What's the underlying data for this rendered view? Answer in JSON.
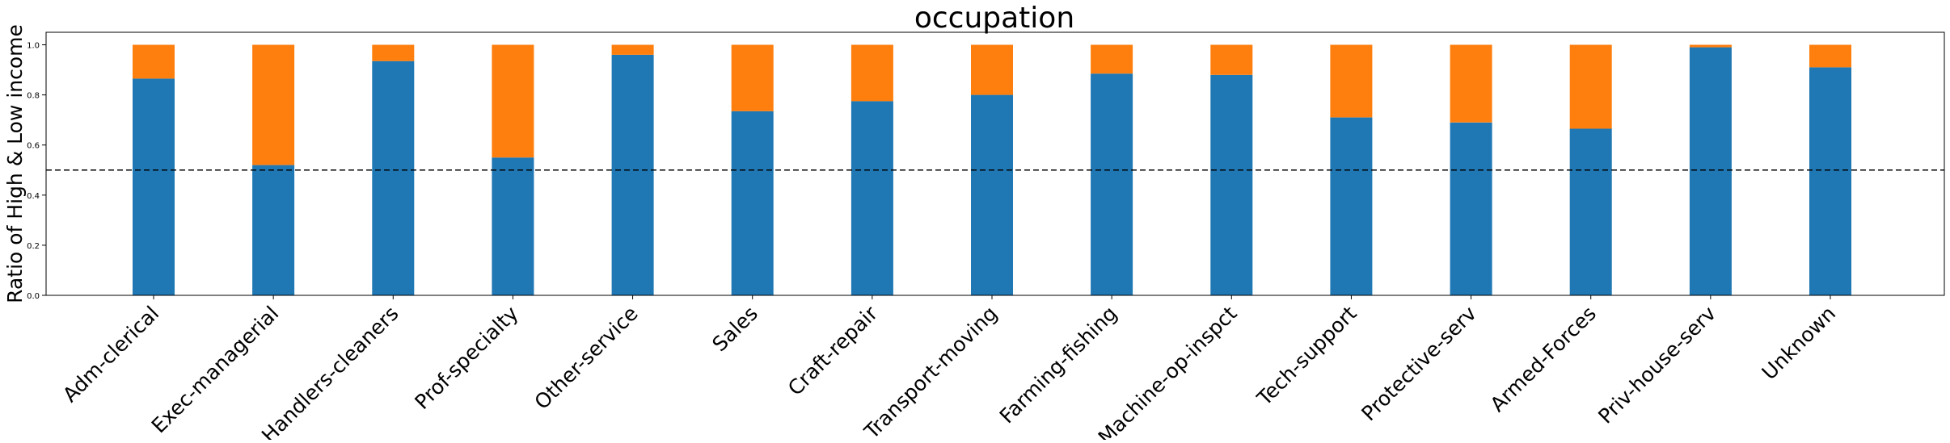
{
  "chart_data": {
    "type": "bar",
    "stacked": true,
    "title": "occupation",
    "xlabel": "",
    "ylabel": "Ratio of High & Low income",
    "ylim": [
      0,
      1.05
    ],
    "yticks": [
      "0.0",
      "0.2",
      "0.4",
      "0.6",
      "0.8",
      "1.0"
    ],
    "grid": false,
    "reference_line": {
      "y": 0.5,
      "style": "dashed",
      "color": "#000000"
    },
    "categories": [
      "Adm-clerical",
      "Exec-managerial",
      "Handlers-cleaners",
      "Prof-specialty",
      "Other-service",
      "Sales",
      "Craft-repair",
      "Transport-moving",
      "Farming-fishing",
      "Machine-op-inspct",
      "Tech-support",
      "Protective-serv",
      "Armed-Forces",
      "Priv-house-serv",
      "Unknown"
    ],
    "series": [
      {
        "color": "#1f77b4",
        "values": [
          0.865,
          0.52,
          0.935,
          0.55,
          0.96,
          0.735,
          0.775,
          0.8,
          0.885,
          0.88,
          0.71,
          0.69,
          0.665,
          0.99,
          0.91
        ]
      },
      {
        "color": "#ff7f0e",
        "values": [
          0.135,
          0.48,
          0.065,
          0.45,
          0.04,
          0.265,
          0.225,
          0.2,
          0.115,
          0.12,
          0.29,
          0.31,
          0.335,
          0.01,
          0.09
        ]
      }
    ]
  }
}
